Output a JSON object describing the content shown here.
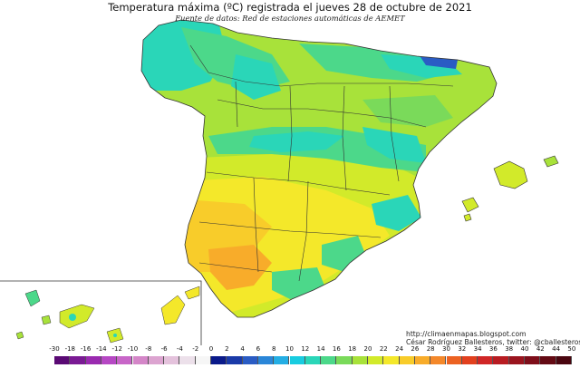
{
  "title": "Temperatura máxima (ºC) registrada el jueves 28 de octubre de 2021",
  "subtitle": "Fuente de datos: Red de estaciones automáticas de AEMET",
  "credits": {
    "url": "http://climaenmapas.blogspot.com",
    "author": "César Rodríguez Ballesteros, twitter: @cballesteros"
  },
  "legend": {
    "ticks": [
      "-30",
      "-18",
      "-16",
      "-14",
      "-12",
      "-10",
      "-8",
      "-6",
      "-4",
      "-2",
      "0",
      "2",
      "4",
      "6",
      "8",
      "10",
      "12",
      "14",
      "16",
      "18",
      "20",
      "22",
      "24",
      "26",
      "28",
      "30",
      "32",
      "34",
      "36",
      "38",
      "40",
      "42",
      "44",
      "50"
    ],
    "colors": [
      "#5a0a74",
      "#7a1a94",
      "#9a2ab0",
      "#b648c4",
      "#c866c8",
      "#d486c8",
      "#dca4d0",
      "#e4c2dc",
      "#ece0ea",
      "#f6f6f6",
      "#0a1a8a",
      "#1a3aa8",
      "#2a5cc4",
      "#2a86d8",
      "#24aee4",
      "#18cce0",
      "#2ad6b8",
      "#4cd88a",
      "#7ada5a",
      "#a8e23a",
      "#d2ea2a",
      "#f4e82a",
      "#f8cc2a",
      "#f8ac2a",
      "#f4882a",
      "#ec6222",
      "#e2401e",
      "#d02626",
      "#b81c22",
      "#9a141e",
      "#7e0e1a",
      "#640a14",
      "#4a0610"
    ]
  },
  "map_colors": {
    "sea": "#ffffff",
    "cold_cyan": "#2ad6b8",
    "cool_green": "#4cd88a",
    "mild_green": "#7ada5a",
    "lime": "#a8e23a",
    "yellow_green": "#d2ea2a",
    "yellow": "#f4e82a",
    "gold": "#f8cc2a",
    "orange": "#f8ac2a",
    "blue": "#2a5cc4",
    "border": "#333333"
  }
}
